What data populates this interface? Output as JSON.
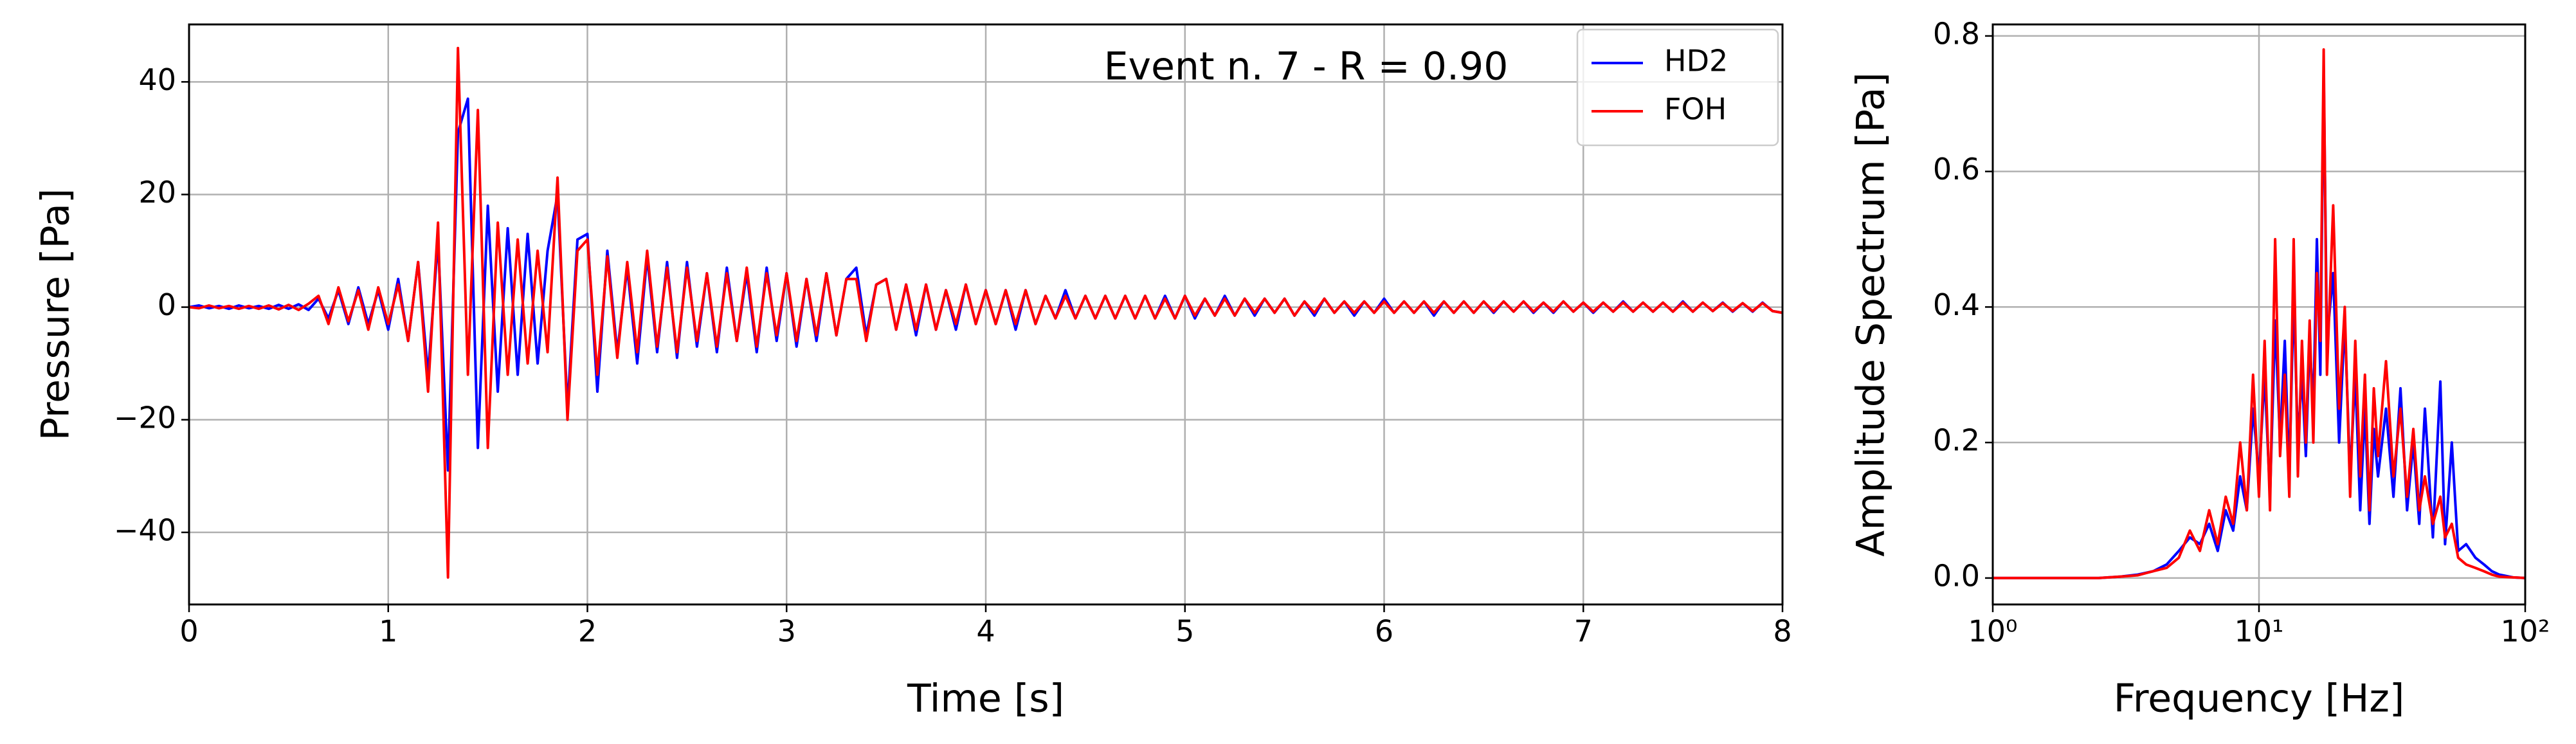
{
  "chart_data": [
    {
      "type": "line",
      "xlabel": "Time [s]",
      "ylabel": "Pressure [Pa]",
      "annotation": "Event n. 7 - R = 0.90",
      "grid": true,
      "legend": "upper right",
      "xlim": [
        0,
        8
      ],
      "xticks": [
        0,
        1,
        2,
        3,
        4,
        5,
        6,
        7,
        8
      ],
      "ylim": [
        -52.8,
        50.2
      ],
      "yticks": [
        {
          "value": -40,
          "label": "−40"
        },
        {
          "value": -20,
          "label": "−20"
        },
        0,
        20,
        40
      ],
      "x": [
        0,
        0.05,
        0.1,
        0.15,
        0.2,
        0.25,
        0.3,
        0.35,
        0.4,
        0.45,
        0.5,
        0.55,
        0.6,
        0.65,
        0.7,
        0.75,
        0.8,
        0.85,
        0.9,
        0.95,
        1,
        1.05,
        1.1,
        1.15,
        1.2,
        1.25,
        1.3,
        1.35,
        1.4,
        1.45,
        1.5,
        1.55,
        1.6,
        1.65,
        1.7,
        1.75,
        1.8,
        1.85,
        1.9,
        1.95,
        2,
        2.05,
        2.1,
        2.15,
        2.2,
        2.25,
        2.3,
        2.35,
        2.4,
        2.45,
        2.5,
        2.55,
        2.6,
        2.65,
        2.7,
        2.75,
        2.8,
        2.85,
        2.9,
        2.95,
        3,
        3.05,
        3.1,
        3.15,
        3.2,
        3.25,
        3.3,
        3.35,
        3.4,
        3.45,
        3.5,
        3.55,
        3.6,
        3.65,
        3.7,
        3.75,
        3.8,
        3.85,
        3.9,
        3.95,
        4,
        4.05,
        4.1,
        4.15,
        4.2,
        4.25,
        4.3,
        4.35,
        4.4,
        4.45,
        4.5,
        4.55,
        4.6,
        4.65,
        4.7,
        4.75,
        4.8,
        4.85,
        4.9,
        4.95,
        5,
        5.05,
        5.1,
        5.15,
        5.2,
        5.25,
        5.3,
        5.35,
        5.4,
        5.45,
        5.5,
        5.55,
        5.6,
        5.65,
        5.7,
        5.75,
        5.8,
        5.85,
        5.9,
        5.95,
        6,
        6.05,
        6.1,
        6.15,
        6.2,
        6.25,
        6.3,
        6.35,
        6.4,
        6.45,
        6.5,
        6.55,
        6.6,
        6.65,
        6.7,
        6.75,
        6.8,
        6.85,
        6.9,
        6.95,
        7,
        7.05,
        7.1,
        7.15,
        7.2,
        7.25,
        7.3,
        7.35,
        7.4,
        7.45,
        7.5,
        7.55,
        7.6,
        7.65,
        7.7,
        7.75,
        7.8,
        7.85,
        7.9,
        7.95,
        8
      ],
      "series": [
        {
          "name": "HD2",
          "color": "#0000ff",
          "values": [
            0,
            0.3,
            -0.2,
            0.2,
            -0.3,
            0.3,
            -0.2,
            0.2,
            -0.3,
            0.4,
            -0.3,
            0.5,
            -0.5,
            1.5,
            -2,
            3,
            -3,
            3.5,
            -3,
            3,
            -4,
            5,
            -6,
            8,
            -12,
            12,
            -29,
            31,
            37,
            -25,
            18,
            -15,
            14,
            -12,
            13,
            -10,
            10,
            20,
            -18,
            12,
            13,
            -15,
            10,
            -8,
            7,
            -10,
            9,
            -8,
            8,
            -9,
            8,
            -7,
            6,
            -8,
            7,
            -6,
            6,
            -8,
            7,
            -6,
            6,
            -7,
            5,
            -6,
            6,
            -5,
            5,
            7,
            -5,
            4,
            5,
            -4,
            4,
            -5,
            4,
            -4,
            3,
            -4,
            4,
            -3,
            3,
            -3,
            3,
            -4,
            3,
            -3,
            2,
            -2,
            3,
            -2,
            2,
            -2,
            2,
            -2,
            2,
            -2,
            2,
            -2,
            2,
            -2,
            2,
            -2,
            1.5,
            -1.5,
            2,
            -1.5,
            1.5,
            -1.5,
            1.5,
            -1,
            1.5,
            -1.5,
            1,
            -1.5,
            1.5,
            -1,
            1,
            -1.5,
            1,
            -1,
            1.5,
            -1,
            1,
            -1,
            1,
            -1.5,
            1,
            -1,
            1,
            -1,
            1,
            -1,
            1,
            -0.8,
            1,
            -1,
            0.8,
            -1,
            1,
            -0.8,
            0.8,
            -1,
            0.8,
            -0.8,
            1,
            -0.8,
            0.8,
            -0.8,
            0.8,
            -0.8,
            1,
            -0.8,
            0.8,
            -0.7,
            0.8,
            -0.8,
            0.7,
            -0.8,
            0.8,
            -0.7,
            -1
          ]
        },
        {
          "name": "FOH",
          "color": "#ff0000",
          "values": [
            0,
            -0.2,
            0.3,
            -0.2,
            0.2,
            -0.3,
            0.2,
            -0.3,
            0.3,
            -0.4,
            0.4,
            -0.5,
            0.6,
            2,
            -3,
            3.5,
            -2.5,
            3,
            -4,
            3.5,
            -3,
            4,
            -6,
            8,
            -15,
            15,
            -48,
            46,
            -12,
            35,
            -25,
            15,
            -12,
            12,
            -10,
            10,
            -8,
            23,
            -20,
            10,
            12,
            -12,
            9,
            -9,
            8,
            -8,
            10,
            -7,
            7,
            -8,
            7,
            -6,
            6,
            -7,
            6,
            -6,
            7,
            -7,
            6,
            -5,
            6,
            -6,
            5,
            -5,
            6,
            -5,
            5,
            5,
            -6,
            4,
            5,
            -4,
            4,
            -4,
            4,
            -4,
            3,
            -3,
            4,
            -3,
            3,
            -3,
            3,
            -3,
            3,
            -3,
            2,
            -2,
            2,
            -2,
            2,
            -2,
            2,
            -2,
            2,
            -2,
            2,
            -2,
            1.5,
            -2,
            2,
            -1.5,
            1.5,
            -1.5,
            1.5,
            -1.5,
            1.5,
            -1,
            1.5,
            -1,
            1.5,
            -1.5,
            1,
            -1,
            1.5,
            -1,
            1,
            -1,
            1,
            -1,
            1,
            -1,
            1,
            -1,
            1,
            -1,
            1,
            -1,
            1,
            -1,
            1,
            -0.8,
            1,
            -0.8,
            1,
            -0.8,
            0.8,
            -0.8,
            1,
            -0.8,
            0.8,
            -0.8,
            0.8,
            -0.8,
            0.8,
            -0.8,
            0.8,
            -0.8,
            0.8,
            -0.8,
            0.8,
            -0.8,
            0.8,
            -0.7,
            0.7,
            -0.7,
            0.7,
            -0.7,
            0.7,
            -0.7,
            -1
          ]
        }
      ]
    },
    {
      "type": "line",
      "xlabel": "Frequency [Hz]",
      "ylabel": "Amplitude Spectrum [Pa]",
      "grid": true,
      "xscale": "log",
      "xlim": [
        1,
        100
      ],
      "xticks": [
        {
          "value": 1,
          "label": "10⁰"
        },
        {
          "value": 10,
          "label": "10¹"
        },
        {
          "value": 100,
          "label": "10²"
        }
      ],
      "ylim": [
        -0.039,
        0.817
      ],
      "yticks": [
        {
          "value": 0,
          "label": "0.0"
        },
        {
          "value": 0.2,
          "label": "0.2"
        },
        {
          "value": 0.4,
          "label": "0.4"
        },
        {
          "value": 0.6,
          "label": "0.6"
        },
        {
          "value": 0.8,
          "label": "0.8"
        }
      ],
      "x": [
        1,
        1.5,
        2,
        2.5,
        3,
        3.5,
        4,
        4.5,
        5,
        5.5,
        6,
        6.5,
        7,
        7.5,
        8,
        8.5,
        9,
        9.5,
        10,
        10.5,
        11,
        11.5,
        12,
        12.5,
        13,
        13.5,
        14,
        14.5,
        15,
        15.5,
        16,
        16.5,
        17,
        17.5,
        18,
        19,
        20,
        21,
        22,
        23,
        24,
        25,
        26,
        27,
        28,
        30,
        32,
        34,
        36,
        38,
        40,
        42,
        45,
        48,
        50,
        53,
        56,
        60,
        65,
        70,
        75,
        80,
        90,
        100
      ],
      "series": [
        {
          "name": "HD2",
          "color": "#0000ff",
          "values": [
            0,
            0,
            0,
            0,
            0.002,
            0.005,
            0.01,
            0.02,
            0.04,
            0.06,
            0.05,
            0.08,
            0.04,
            0.1,
            0.07,
            0.15,
            0.1,
            0.25,
            0.15,
            0.3,
            0.12,
            0.38,
            0.2,
            0.35,
            0.15,
            0.42,
            0.2,
            0.3,
            0.18,
            0.35,
            0.25,
            0.5,
            0.3,
            0.75,
            0.35,
            0.45,
            0.2,
            0.38,
            0.15,
            0.3,
            0.1,
            0.25,
            0.08,
            0.22,
            0.15,
            0.25,
            0.12,
            0.28,
            0.1,
            0.2,
            0.08,
            0.25,
            0.06,
            0.29,
            0.05,
            0.2,
            0.04,
            0.05,
            0.03,
            0.02,
            0.01,
            0.005,
            0.001,
            0
          ]
        },
        {
          "name": "FOH",
          "color": "#ff0000",
          "values": [
            0,
            0,
            0,
            0,
            0.002,
            0.004,
            0.01,
            0.015,
            0.03,
            0.07,
            0.04,
            0.1,
            0.05,
            0.12,
            0.08,
            0.2,
            0.1,
            0.3,
            0.12,
            0.35,
            0.1,
            0.5,
            0.18,
            0.3,
            0.12,
            0.5,
            0.15,
            0.35,
            0.2,
            0.38,
            0.2,
            0.45,
            0.35,
            0.78,
            0.3,
            0.55,
            0.25,
            0.4,
            0.12,
            0.35,
            0.15,
            0.3,
            0.1,
            0.28,
            0.18,
            0.32,
            0.15,
            0.25,
            0.12,
            0.22,
            0.1,
            0.15,
            0.08,
            0.12,
            0.06,
            0.08,
            0.03,
            0.02,
            0.015,
            0.01,
            0.005,
            0.002,
            0.001,
            0
          ]
        }
      ]
    }
  ]
}
